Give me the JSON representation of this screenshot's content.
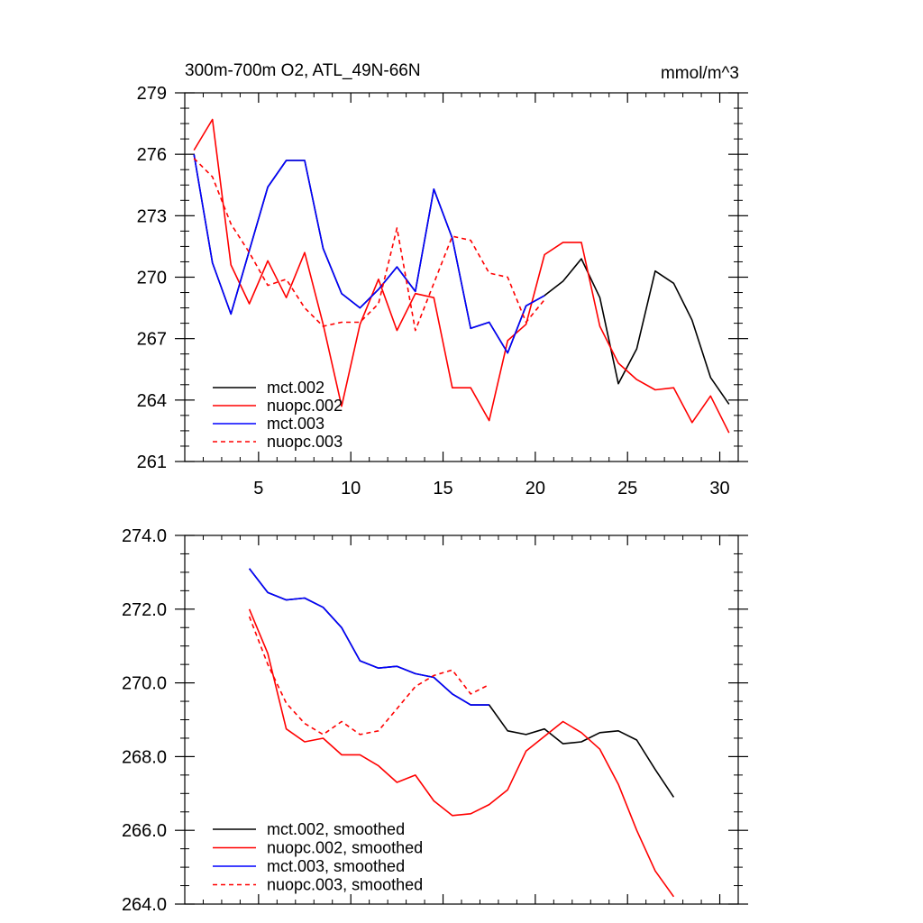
{
  "chart_data": [
    {
      "type": "line",
      "title": "300m-700m O2, ATL_49N-66N",
      "units": "mmol/m^3",
      "xlim": [
        1,
        31
      ],
      "ylim": [
        261,
        279
      ],
      "xticks": [
        5,
        10,
        15,
        20,
        25,
        30
      ],
      "xtick_labels": [
        "5",
        "10",
        "15",
        "20",
        "25",
        "30"
      ],
      "yticks": [
        261,
        264,
        267,
        270,
        273,
        276,
        279
      ],
      "ytick_labels": [
        "261",
        "264",
        "267",
        "270",
        "273",
        "276",
        "279"
      ],
      "legend_position": "bottom-left",
      "grid": false,
      "series": [
        {
          "name": "mct.002",
          "color": "#000000",
          "dash": "solid",
          "x": [
            1.5,
            2.5,
            3.5,
            4.5,
            5.5,
            6.5,
            7.5,
            8.5,
            9.5,
            10.5,
            11.5,
            12.5,
            13.5,
            14.5,
            15.5,
            16.5,
            17.5,
            18.5,
            19.5,
            20.5,
            21.5,
            22.5,
            23.5,
            24.5,
            25.5,
            26.5,
            27.5,
            28.5,
            29.5,
            30.5
          ],
          "y": [
            276.0,
            270.7,
            268.2,
            271.3,
            274.4,
            275.7,
            275.7,
            271.4,
            269.2,
            268.5,
            269.4,
            270.5,
            269.3,
            274.3,
            271.9,
            267.5,
            267.8,
            266.3,
            268.6,
            269.1,
            269.8,
            270.9,
            269.0,
            264.8,
            266.5,
            270.3,
            269.7,
            267.9,
            265.1,
            263.8
          ]
        },
        {
          "name": "nuopc.002",
          "color": "#ff0000",
          "dash": "solid",
          "x": [
            1.5,
            2.5,
            3.5,
            4.5,
            5.5,
            6.5,
            7.5,
            8.5,
            9.5,
            10.5,
            11.5,
            12.5,
            13.5,
            14.5,
            15.5,
            16.5,
            17.5,
            18.5,
            19.5,
            20.5,
            21.5,
            22.5,
            23.5,
            24.5,
            25.5,
            26.5,
            27.5,
            28.5,
            29.5,
            30.5
          ],
          "y": [
            276.2,
            277.7,
            270.6,
            268.7,
            270.8,
            269.0,
            271.2,
            267.7,
            263.7,
            267.7,
            269.9,
            267.4,
            269.2,
            269.0,
            264.6,
            264.6,
            263.0,
            266.9,
            267.7,
            271.1,
            271.7,
            271.7,
            267.6,
            265.8,
            265.0,
            264.5,
            264.6,
            262.9,
            264.2,
            262.4
          ]
        },
        {
          "name": "mct.003",
          "color": "#0000ff",
          "dash": "solid",
          "x": [
            1.5,
            2.5,
            3.5,
            4.5,
            5.5,
            6.5,
            7.5,
            8.5,
            9.5,
            10.5,
            11.5,
            12.5,
            13.5,
            14.5,
            15.5,
            16.5,
            17.5,
            18.5,
            19.5,
            20.5
          ],
          "y": [
            276.0,
            270.7,
            268.2,
            271.3,
            274.4,
            275.7,
            275.7,
            271.4,
            269.2,
            268.5,
            269.4,
            270.5,
            269.3,
            274.3,
            271.9,
            267.5,
            267.8,
            266.3,
            268.6,
            269.1
          ]
        },
        {
          "name": "nuopc.003",
          "color": "#ff0000",
          "dash": "dashed",
          "x": [
            1.5,
            2.5,
            3.5,
            4.5,
            5.5,
            6.5,
            7.5,
            8.5,
            9.5,
            10.5,
            11.5,
            12.5,
            13.5,
            14.5,
            15.5,
            16.5,
            17.5,
            18.5,
            19.5,
            20.5
          ],
          "y": [
            275.8,
            274.9,
            272.6,
            271.2,
            269.6,
            269.9,
            268.5,
            267.6,
            267.8,
            267.8,
            268.7,
            272.4,
            267.4,
            269.7,
            272.0,
            271.8,
            270.2,
            270.0,
            267.8,
            268.9
          ]
        }
      ]
    },
    {
      "type": "line",
      "title": "",
      "units": "",
      "xlim": [
        1,
        31
      ],
      "ylim": [
        264,
        274
      ],
      "xticks": [
        5,
        10,
        15,
        20,
        25,
        30
      ],
      "xtick_labels": [],
      "yticks": [
        264,
        266,
        268,
        270,
        272,
        274
      ],
      "ytick_labels": [
        "264.0",
        "266.0",
        "268.0",
        "270.0",
        "272.0",
        "274.0"
      ],
      "legend_position": "bottom-left",
      "grid": false,
      "series": [
        {
          "name": "mct.002, smoothed",
          "color": "#000000",
          "dash": "solid",
          "x": [
            4.5,
            5.5,
            6.5,
            7.5,
            8.5,
            9.5,
            10.5,
            11.5,
            12.5,
            13.5,
            14.5,
            15.5,
            16.5,
            17.5,
            18.5,
            19.5,
            20.5,
            21.5,
            22.5,
            23.5,
            24.5,
            25.5,
            26.5,
            27.5
          ],
          "y": [
            273.1,
            272.45,
            272.25,
            272.3,
            272.05,
            271.5,
            270.6,
            270.4,
            270.45,
            270.25,
            270.15,
            269.7,
            269.4,
            269.4,
            268.7,
            268.6,
            268.75,
            268.35,
            268.4,
            268.65,
            268.7,
            268.45,
            267.65,
            266.9
          ]
        },
        {
          "name": "nuopc.002, smoothed",
          "color": "#ff0000",
          "dash": "solid",
          "x": [
            4.5,
            5.5,
            6.5,
            7.5,
            8.5,
            9.5,
            10.5,
            11.5,
            12.5,
            13.5,
            14.5,
            15.5,
            16.5,
            17.5,
            18.5,
            19.5,
            20.5,
            21.5,
            22.5,
            23.5,
            24.5,
            25.5,
            26.5,
            27.5
          ],
          "y": [
            272.0,
            270.8,
            268.75,
            268.4,
            268.5,
            268.05,
            268.05,
            267.75,
            267.3,
            267.5,
            266.8,
            266.4,
            266.45,
            266.7,
            267.1,
            268.15,
            268.55,
            268.95,
            268.65,
            268.2,
            267.25,
            266.0,
            264.9,
            264.2
          ]
        },
        {
          "name": "mct.003, smoothed",
          "color": "#0000ff",
          "dash": "solid",
          "x": [
            4.5,
            5.5,
            6.5,
            7.5,
            8.5,
            9.5,
            10.5,
            11.5,
            12.5,
            13.5,
            14.5,
            15.5,
            16.5,
            17.5
          ],
          "y": [
            273.1,
            272.45,
            272.25,
            272.3,
            272.05,
            271.5,
            270.6,
            270.4,
            270.45,
            270.25,
            270.15,
            269.7,
            269.4,
            269.4
          ]
        },
        {
          "name": "nuopc.003, smoothed",
          "color": "#ff0000",
          "dash": "dashed",
          "x": [
            4.5,
            5.5,
            6.5,
            7.5,
            8.5,
            9.5,
            10.5,
            11.5,
            12.5,
            13.5,
            14.5,
            15.5,
            16.5,
            17.5
          ],
          "y": [
            271.8,
            270.5,
            269.45,
            268.9,
            268.6,
            268.95,
            268.6,
            268.7,
            269.3,
            269.9,
            270.2,
            270.35,
            269.7,
            269.95
          ]
        }
      ]
    }
  ]
}
